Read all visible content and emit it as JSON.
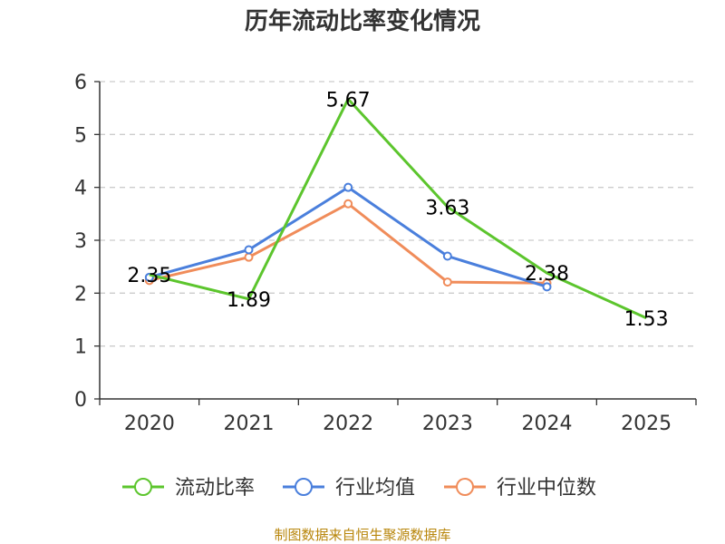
{
  "chart_data": {
    "type": "line",
    "title": "历年流动比率变化情况",
    "categories": [
      "2020",
      "2021",
      "2022",
      "2023",
      "2024",
      "2025"
    ],
    "ylim": [
      0,
      6
    ],
    "yticks": [
      0,
      1,
      2,
      3,
      4,
      5,
      6
    ],
    "grid": true,
    "legend_position": "bottom",
    "series": [
      {
        "name": "流动比率",
        "color": "#5cc52d",
        "values": [
          2.35,
          1.89,
          5.67,
          3.63,
          2.38,
          1.53
        ],
        "labels": [
          "2.35",
          "1.89",
          "5.67",
          "3.63",
          "2.38",
          "1.53"
        ]
      },
      {
        "name": "行业均值",
        "color": "#4a7fdc",
        "values": [
          2.3,
          2.82,
          4.0,
          2.7,
          2.12,
          null
        ]
      },
      {
        "name": "行业中位数",
        "color": "#f08c5a",
        "values": [
          2.24,
          2.68,
          3.69,
          2.21,
          2.19,
          null
        ]
      }
    ],
    "source": "制图数据来自恒生聚源数据库"
  }
}
